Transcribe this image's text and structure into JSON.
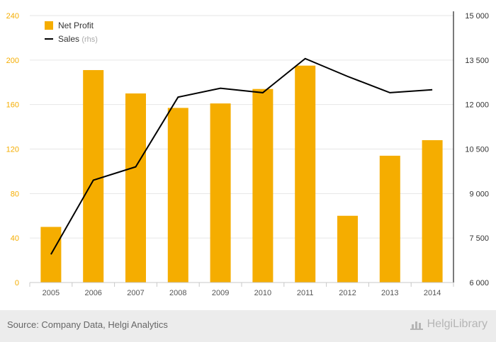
{
  "chart_data": {
    "type": "bar",
    "categories": [
      "2005",
      "2006",
      "2007",
      "2008",
      "2009",
      "2010",
      "2011",
      "2012",
      "2013",
      "2014"
    ],
    "series": [
      {
        "name": "Net Profit",
        "kind": "bar",
        "axis": "left",
        "color": "#f5ad00",
        "values": [
          50,
          191,
          170,
          157,
          161,
          174,
          195,
          60,
          114,
          128
        ]
      },
      {
        "name": "Sales",
        "kind": "line",
        "axis": "right",
        "color": "#000000",
        "values": [
          6950,
          9450,
          9900,
          12250,
          12550,
          12400,
          13550,
          12950,
          12400,
          12500
        ]
      }
    ],
    "legend": {
      "placement": "top-left",
      "sales_suffix": "(rhs)"
    },
    "y_left": {
      "lim": [
        0,
        240
      ],
      "ticks": [
        0,
        40,
        80,
        120,
        160,
        200,
        240
      ],
      "tick_labels": [
        "0",
        "40",
        "80",
        "120",
        "160",
        "200",
        "240"
      ],
      "color": "#f5ad00"
    },
    "y_right": {
      "lim": [
        6000,
        15000
      ],
      "ticks": [
        6000,
        7500,
        9000,
        10500,
        12000,
        13500,
        15000
      ],
      "tick_labels": [
        "6 000",
        "7 500",
        "9 000",
        "10 500",
        "12 000",
        "13 500",
        "15 000"
      ]
    },
    "grid": true
  },
  "footer": {
    "source": "Source: Company Data, Helgi Analytics",
    "brand": "HelgiLibrary"
  }
}
